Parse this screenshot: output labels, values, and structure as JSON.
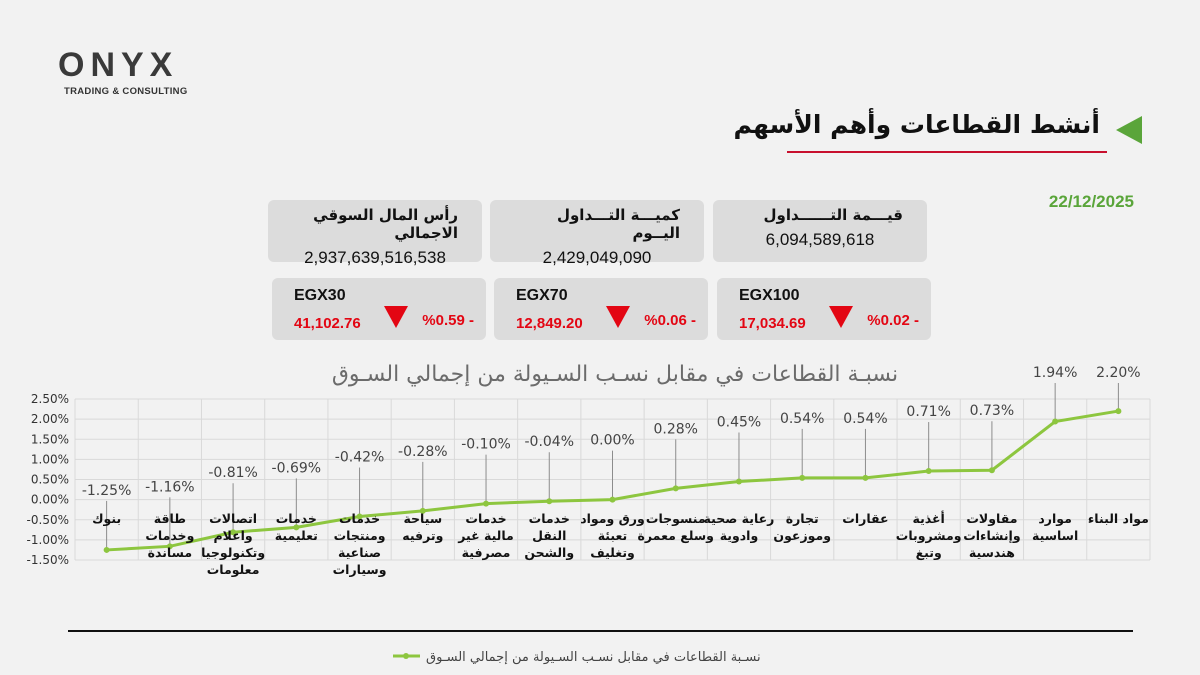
{
  "header": {
    "logo": "ONYX",
    "tagline": "TRADING & CONSULTING",
    "title": "أنشط القطاعات وأهم الأسهم",
    "date": "22/12/2025"
  },
  "stats": [
    {
      "label": "قيـــمة التــــــداول",
      "value": "6,094,589,618"
    },
    {
      "label": "كميـــة التـــداول اليــوم",
      "value": "2,429,049,090"
    },
    {
      "label": "رأس المال السوقي الاجمالي",
      "value": "2,937,639,516,538"
    }
  ],
  "indices": [
    {
      "name": "EGX100",
      "price": "17,034.69",
      "change": "%0.02 -"
    },
    {
      "name": "EGX70",
      "price": "12,849.20",
      "change": "%0.06 -"
    },
    {
      "name": "EGX30",
      "price": "41,102.76",
      "change": "%0.59 -"
    }
  ],
  "chart_data": {
    "type": "line",
    "title": "نسبـة القطاعات في مقابل نسـب السـيولة من إجمالي السـوق",
    "categories": [
      "بنوك",
      "طاقة\nوخدمات\nمساندة",
      "اتصالات\nواعلام\nوتكنولوجيا\nمعلومات",
      "خدمات\nتعليمية",
      "خدمات\nومنتجات\nصناعية\nوسيارات",
      "سياحة\nوترفيه",
      "خدمات\nمالية غير\nمصرفية",
      "خدمات\nالنقل\nوالشحن",
      "ورق ومواد\nتعبئة\nوتغليف",
      "منسوجات\nوسلع معمرة",
      "رعاية صحية\nوادوية",
      "تجارة\nوموزعون",
      "عقارات",
      "أغذية\nومشروبات\nوتبغ",
      "مقاولات\nوإنشاءات\nهندسية",
      "موارد\nاساسية",
      "مواد البناء"
    ],
    "series": [
      {
        "name": "نسـبة القطاعات في مقابل نسـب السـيولة من إجمالي السـوق",
        "color": "#8dc63f",
        "values": [
          -1.25,
          -1.16,
          -0.81,
          -0.69,
          -0.42,
          -0.28,
          -0.1,
          -0.04,
          0.0,
          0.28,
          0.45,
          0.54,
          0.54,
          0.71,
          0.73,
          1.94,
          2.2
        ],
        "value_labels": [
          "-1.25%",
          "-1.16%",
          "-0.81%",
          "-0.69%",
          "-0.42%",
          "-0.28%",
          "-0.10%",
          "-0.04%",
          "0.00%",
          "0.28%",
          "0.45%",
          "0.54%",
          "0.54%",
          "0.71%",
          "0.73%",
          "1.94%",
          "2.20%"
        ]
      }
    ],
    "ylim": [
      -1.5,
      2.5
    ],
    "yticks": [
      {
        "value": -1.5,
        "label": "-1.50%"
      },
      {
        "value": -1,
        "label": "-1.00%"
      },
      {
        "value": -0.5,
        "label": "-0.50%"
      },
      {
        "value": 0,
        "label": "0.00%"
      },
      {
        "value": 0.5,
        "label": "0.50%"
      },
      {
        "value": 1,
        "label": "1.00%"
      },
      {
        "value": 1.5,
        "label": "1.50%"
      },
      {
        "value": 2,
        "label": "2.00%"
      },
      {
        "value": 2.5,
        "label": "2.50%"
      }
    ],
    "grid": true,
    "legend": "bottom"
  }
}
